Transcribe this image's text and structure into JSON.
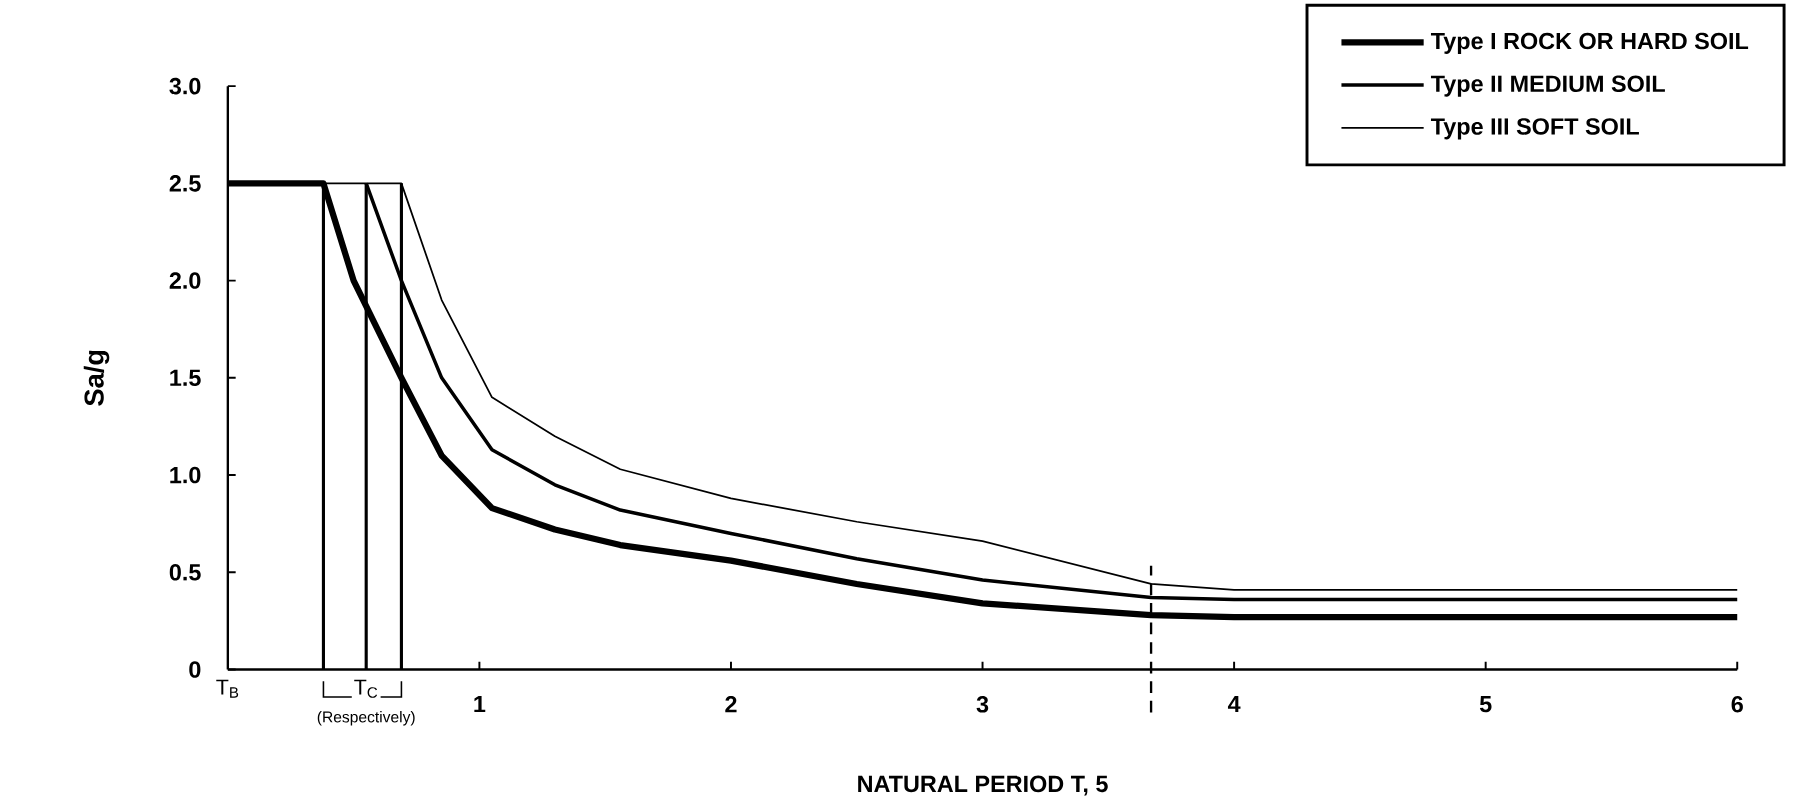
{
  "chart_data": {
    "type": "line",
    "xlabel": "NATURAL PERIOD T, 5",
    "ylabel": "Sa/g",
    "xlim": [
      0,
      6
    ],
    "xticks": [
      1,
      2,
      3,
      4,
      5,
      6
    ],
    "ylim": [
      0,
      3
    ],
    "yticks": [
      0,
      {
        "value": 0.5,
        "label": "0.5"
      },
      {
        "value": 1,
        "label": "1.0"
      },
      {
        "value": 1.5,
        "label": "1.5"
      },
      {
        "value": 2,
        "label": "2.0"
      },
      {
        "value": 2.5,
        "label": "2.5"
      },
      {
        "value": 3,
        "label": "3.0"
      }
    ],
    "grid": false,
    "legend": "top right",
    "marker": "none",
    "line_style": "solid",
    "series": [
      {
        "name": "Type I ROCK OR HARD SOIL",
        "color": "#000000",
        "x": [
          0,
          0.38,
          0.5,
          0.69,
          0.85,
          1.05,
          1.3,
          1.56,
          2,
          2.5,
          3,
          3.67,
          4,
          5,
          6
        ],
        "values": [
          2.5,
          2.5,
          2.0,
          1.5,
          1.1,
          0.83,
          0.72,
          0.64,
          0.56,
          0.44,
          0.34,
          0.28,
          0.27,
          0.27,
          0.27
        ]
      },
      {
        "name": "Type II MEDIUM SOIL",
        "color": "#000000",
        "x": [
          0.55,
          0.69,
          0.85,
          1.05,
          1.3,
          1.56,
          2,
          2.5,
          3,
          3.67,
          4,
          5,
          6
        ],
        "values": [
          2.5,
          2.0,
          1.5,
          1.13,
          0.95,
          0.82,
          0.7,
          0.57,
          0.46,
          0.37,
          0.36,
          0.36,
          0.36
        ]
      },
      {
        "name": "Type III SOFT SOIL",
        "color": "#000000",
        "x": [
          0.38,
          0.69,
          0.85,
          1.05,
          1.3,
          1.56,
          2,
          2.5,
          3,
          3.67,
          4,
          5,
          6
        ],
        "values": [
          2.5,
          2.5,
          1.9,
          1.4,
          1.2,
          1.03,
          0.88,
          0.76,
          0.66,
          0.44,
          0.41,
          0.41,
          0.41
        ]
      },
      {
        "color": "#000000",
        "x": [
          0.38,
          0.38
        ],
        "values": [
          0,
          2.5
        ]
      },
      {
        "color": "#000000",
        "x": [
          0.55,
          0.55
        ],
        "values": [
          0,
          2.5
        ]
      },
      {
        "color": "#000000",
        "x": [
          0.69,
          0.69
        ],
        "values": [
          0,
          2.5
        ]
      }
    ],
    "ref_lines": [
      {
        "axis": "x",
        "value": 3.67,
        "line_style": "dashed",
        "color": "#000000"
      }
    ],
    "annotations": [
      "T$_{B}$",
      "T$_{C}$",
      "(Respectively)"
    ]
  }
}
